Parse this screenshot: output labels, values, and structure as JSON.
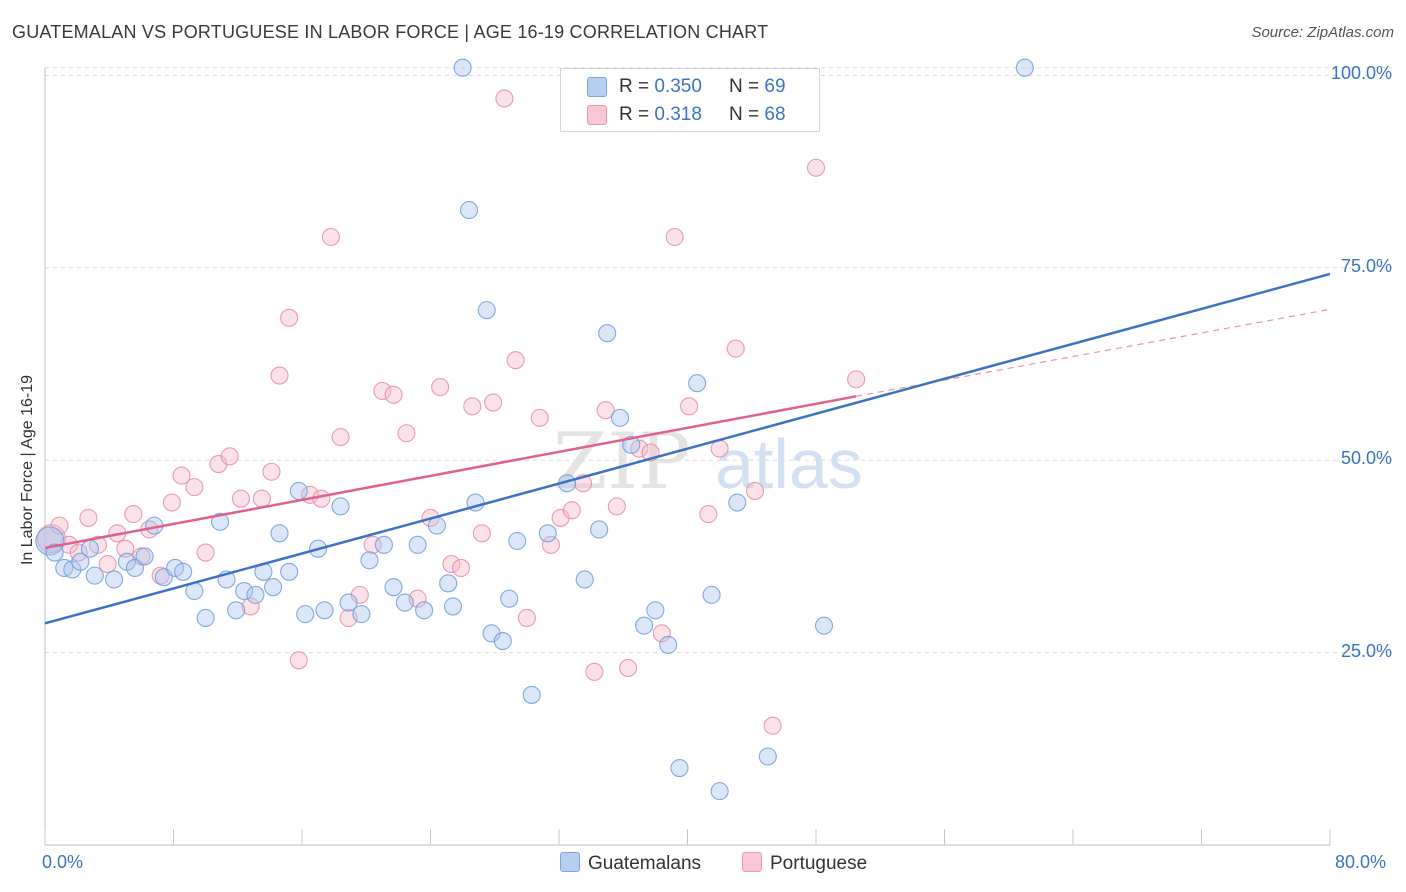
{
  "title": "GUATEMALAN VS PORTUGUESE IN LABOR FORCE | AGE 16-19 CORRELATION CHART",
  "source": "Source: ZipAtlas.com",
  "watermark": {
    "zip": "ZIP",
    "atlas": "atlas"
  },
  "colors": {
    "blue": "#3b73c4",
    "blue_fill": "#a9c5ee",
    "pink": "#e0628c",
    "pink_fill": "#f6b9ca",
    "grid": "#dcdcdc"
  },
  "legend": {
    "rows": [
      {
        "r_label": "R =",
        "r_value": "0.350",
        "n_label": "N =",
        "n_value": "69"
      },
      {
        "r_label": "R =",
        "r_value": "0.318",
        "n_label": "N =",
        "n_value": "68"
      }
    ],
    "series": [
      "Guatemalans",
      "Portuguese"
    ]
  },
  "chart_data": {
    "type": "scatter",
    "title": "GUATEMALAN VS PORTUGUESE IN LABOR FORCE | AGE 16-19 CORRELATION CHART",
    "xlabel": "",
    "ylabel": "In Labor Force | Age 16-19",
    "xlim": [
      0,
      80
    ],
    "ylim": [
      0,
      102
    ],
    "x_tick_labels": [
      "0.0%",
      "80.0%"
    ],
    "y_ticks": [
      25,
      50,
      75,
      100
    ],
    "y_tick_labels": [
      "25.0%",
      "50.0%",
      "75.0%",
      "100.0%"
    ],
    "grid": true,
    "series": [
      {
        "name": "Guatemalans",
        "R": 0.35,
        "N": 69,
        "trend": {
          "x": [
            0,
            80
          ],
          "y": [
            28.8,
            74.2
          ]
        },
        "points": [
          {
            "x": 0.3,
            "y": 39.5
          },
          {
            "x": 0.6,
            "y": 38.0
          },
          {
            "x": 1.2,
            "y": 36.0
          },
          {
            "x": 1.7,
            "y": 35.8
          },
          {
            "x": 2.2,
            "y": 36.8
          },
          {
            "x": 2.8,
            "y": 38.5
          },
          {
            "x": 3.1,
            "y": 35.0
          },
          {
            "x": 4.3,
            "y": 34.5
          },
          {
            "x": 5.1,
            "y": 36.8
          },
          {
            "x": 5.6,
            "y": 36.0
          },
          {
            "x": 6.2,
            "y": 37.5
          },
          {
            "x": 6.8,
            "y": 41.5
          },
          {
            "x": 7.4,
            "y": 34.8
          },
          {
            "x": 8.1,
            "y": 36.0
          },
          {
            "x": 8.6,
            "y": 35.5
          },
          {
            "x": 9.3,
            "y": 33.0
          },
          {
            "x": 10.0,
            "y": 29.5
          },
          {
            "x": 10.9,
            "y": 42.0
          },
          {
            "x": 11.3,
            "y": 34.5
          },
          {
            "x": 11.9,
            "y": 30.5
          },
          {
            "x": 12.4,
            "y": 33.0
          },
          {
            "x": 13.1,
            "y": 32.5
          },
          {
            "x": 13.6,
            "y": 35.5
          },
          {
            "x": 14.2,
            "y": 33.5
          },
          {
            "x": 14.6,
            "y": 40.5
          },
          {
            "x": 15.2,
            "y": 35.5
          },
          {
            "x": 15.8,
            "y": 46.0
          },
          {
            "x": 16.2,
            "y": 30.0
          },
          {
            "x": 17.0,
            "y": 38.5
          },
          {
            "x": 17.4,
            "y": 30.5
          },
          {
            "x": 18.4,
            "y": 44.0
          },
          {
            "x": 18.9,
            "y": 31.5
          },
          {
            "x": 19.7,
            "y": 30.0
          },
          {
            "x": 20.2,
            "y": 37.0
          },
          {
            "x": 21.1,
            "y": 39.0
          },
          {
            "x": 21.7,
            "y": 33.5
          },
          {
            "x": 22.4,
            "y": 31.5
          },
          {
            "x": 23.2,
            "y": 39.0
          },
          {
            "x": 23.6,
            "y": 30.5
          },
          {
            "x": 24.4,
            "y": 41.5
          },
          {
            "x": 25.1,
            "y": 34.0
          },
          {
            "x": 25.4,
            "y": 31.0
          },
          {
            "x": 26.4,
            "y": 82.5
          },
          {
            "x": 26.8,
            "y": 44.5
          },
          {
            "x": 27.5,
            "y": 69.5
          },
          {
            "x": 27.8,
            "y": 27.5
          },
          {
            "x": 28.5,
            "y": 26.5
          },
          {
            "x": 28.9,
            "y": 32.0
          },
          {
            "x": 29.4,
            "y": 39.5
          },
          {
            "x": 30.3,
            "y": 19.5
          },
          {
            "x": 31.3,
            "y": 40.5
          },
          {
            "x": 32.5,
            "y": 47.0
          },
          {
            "x": 33.6,
            "y": 34.5
          },
          {
            "x": 34.5,
            "y": 41.0
          },
          {
            "x": 35.0,
            "y": 66.5
          },
          {
            "x": 35.8,
            "y": 55.5
          },
          {
            "x": 36.5,
            "y": 52.0
          },
          {
            "x": 37.3,
            "y": 28.5
          },
          {
            "x": 38.0,
            "y": 30.5
          },
          {
            "x": 38.8,
            "y": 26.0
          },
          {
            "x": 39.5,
            "y": 10.0
          },
          {
            "x": 40.6,
            "y": 60.0
          },
          {
            "x": 41.5,
            "y": 32.5
          },
          {
            "x": 42.0,
            "y": 7.0
          },
          {
            "x": 43.1,
            "y": 44.5
          },
          {
            "x": 45.0,
            "y": 11.5
          },
          {
            "x": 48.5,
            "y": 28.5
          },
          {
            "x": 26.0,
            "y": 101.0
          },
          {
            "x": 61.0,
            "y": 101.0
          }
        ]
      },
      {
        "name": "Portuguese",
        "R": 0.318,
        "N": 68,
        "trend": {
          "x": [
            0,
            50.5
          ],
          "y": [
            38.6,
            58.3
          ]
        },
        "trend_dashed": {
          "x": [
            50.5,
            80
          ],
          "y": [
            58.3,
            69.6
          ]
        },
        "points": [
          {
            "x": 0.4,
            "y": 39.8
          },
          {
            "x": 0.9,
            "y": 41.5
          },
          {
            "x": 1.5,
            "y": 39.0
          },
          {
            "x": 2.1,
            "y": 38.0
          },
          {
            "x": 2.7,
            "y": 42.5
          },
          {
            "x": 3.3,
            "y": 39.0
          },
          {
            "x": 3.9,
            "y": 36.5
          },
          {
            "x": 4.5,
            "y": 40.5
          },
          {
            "x": 5.0,
            "y": 38.5
          },
          {
            "x": 5.5,
            "y": 43.0
          },
          {
            "x": 6.0,
            "y": 37.5
          },
          {
            "x": 6.5,
            "y": 41.0
          },
          {
            "x": 7.2,
            "y": 35.0
          },
          {
            "x": 7.9,
            "y": 44.5
          },
          {
            "x": 8.5,
            "y": 48.0
          },
          {
            "x": 9.3,
            "y": 46.5
          },
          {
            "x": 10.0,
            "y": 38.0
          },
          {
            "x": 10.8,
            "y": 49.5
          },
          {
            "x": 11.5,
            "y": 50.5
          },
          {
            "x": 12.2,
            "y": 45.0
          },
          {
            "x": 12.8,
            "y": 31.0
          },
          {
            "x": 13.5,
            "y": 45.0
          },
          {
            "x": 14.1,
            "y": 48.5
          },
          {
            "x": 14.6,
            "y": 61.0
          },
          {
            "x": 15.2,
            "y": 68.5
          },
          {
            "x": 15.8,
            "y": 24.0
          },
          {
            "x": 16.5,
            "y": 45.5
          },
          {
            "x": 17.2,
            "y": 45.0
          },
          {
            "x": 17.8,
            "y": 79.0
          },
          {
            "x": 18.4,
            "y": 53.0
          },
          {
            "x": 18.9,
            "y": 29.5
          },
          {
            "x": 19.6,
            "y": 32.5
          },
          {
            "x": 20.4,
            "y": 39.0
          },
          {
            "x": 21.0,
            "y": 59.0
          },
          {
            "x": 21.7,
            "y": 58.5
          },
          {
            "x": 22.5,
            "y": 53.5
          },
          {
            "x": 23.2,
            "y": 32.0
          },
          {
            "x": 24.0,
            "y": 42.5
          },
          {
            "x": 24.6,
            "y": 59.5
          },
          {
            "x": 25.3,
            "y": 36.5
          },
          {
            "x": 25.9,
            "y": 36.0
          },
          {
            "x": 26.6,
            "y": 57.0
          },
          {
            "x": 27.2,
            "y": 40.5
          },
          {
            "x": 27.9,
            "y": 57.5
          },
          {
            "x": 28.6,
            "y": 97.0
          },
          {
            "x": 29.3,
            "y": 63.0
          },
          {
            "x": 30.0,
            "y": 29.5
          },
          {
            "x": 30.8,
            "y": 55.5
          },
          {
            "x": 31.5,
            "y": 39.0
          },
          {
            "x": 32.1,
            "y": 42.5
          },
          {
            "x": 32.8,
            "y": 43.5
          },
          {
            "x": 33.5,
            "y": 47.0
          },
          {
            "x": 34.2,
            "y": 22.5
          },
          {
            "x": 34.9,
            "y": 56.5
          },
          {
            "x": 35.6,
            "y": 44.0
          },
          {
            "x": 36.3,
            "y": 23.0
          },
          {
            "x": 37.0,
            "y": 51.5
          },
          {
            "x": 37.7,
            "y": 51.0
          },
          {
            "x": 38.4,
            "y": 27.5
          },
          {
            "x": 39.2,
            "y": 79.0
          },
          {
            "x": 40.1,
            "y": 57.0
          },
          {
            "x": 41.3,
            "y": 43.0
          },
          {
            "x": 42.0,
            "y": 51.5
          },
          {
            "x": 43.0,
            "y": 64.5
          },
          {
            "x": 44.2,
            "y": 46.0
          },
          {
            "x": 45.3,
            "y": 15.5
          },
          {
            "x": 50.5,
            "y": 60.5
          },
          {
            "x": 48.0,
            "y": 88.0
          }
        ]
      }
    ]
  }
}
